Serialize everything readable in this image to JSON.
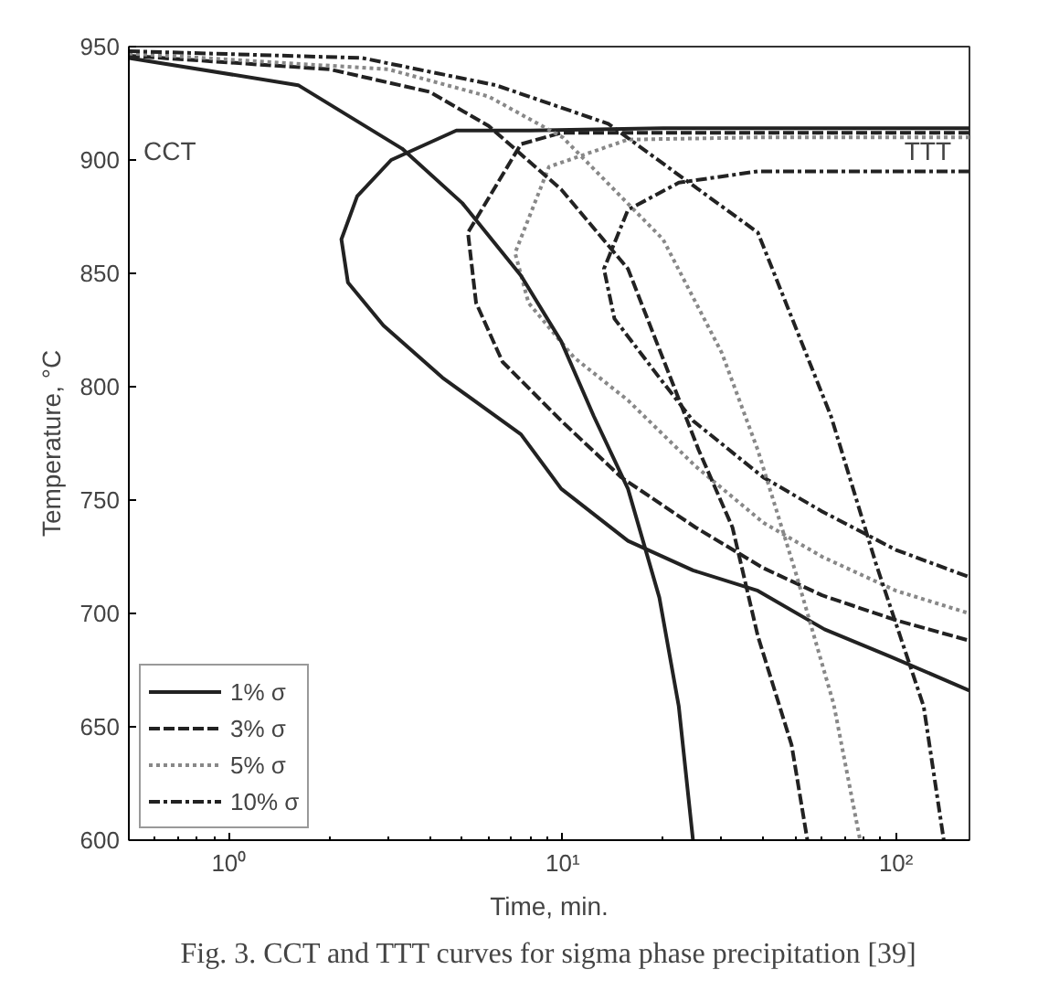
{
  "chart_data": {
    "type": "line",
    "xlabel": "Time, min.",
    "ylabel": "Temperature, °C",
    "log": "x",
    "xlim": [
      0.5,
      166
    ],
    "ylim": [
      600,
      950
    ],
    "xticks": [
      {
        "value": 1,
        "label": "10⁰"
      },
      {
        "value": 10,
        "label": "10¹"
      },
      {
        "value": 100,
        "label": "10²"
      }
    ],
    "yticks": [
      600,
      650,
      700,
      750,
      800,
      850,
      900,
      950
    ],
    "grid": false,
    "legend": "bottom left",
    "annotations": [
      "CCT",
      "TTT",
      "Fig. 3. CCT and TTT curves for sigma phase precipitation [39]"
    ],
    "series": [
      {
        "name": "1% σ",
        "color": "#222222",
        "line_style": "solid",
        "x": [
          166,
          20,
          8,
          4.8,
          3.06,
          2.42,
          2.17,
          2.27,
          2.9,
          4.36,
          7.5,
          9.9,
          15.7,
          24.6,
          38.5,
          61,
          96,
          166
        ],
        "values": [
          914,
          914,
          913,
          913,
          900,
          884,
          865,
          846,
          827,
          804,
          779,
          755,
          732,
          719,
          710,
          693,
          681,
          666
        ]
      },
      {
        "name": "3% σ",
        "color": "#222222",
        "line_style": "dashed",
        "x": [
          166,
          40,
          15.7,
          9.9,
          7.5,
          5.2,
          5.5,
          6.6,
          9.9,
          15,
          25,
          40,
          60,
          100,
          166
        ],
        "values": [
          912,
          912,
          912,
          912,
          907,
          868,
          837,
          811,
          785,
          760,
          738,
          720,
          708,
          697,
          688
        ]
      },
      {
        "name": "5% σ",
        "color": "#888888",
        "line_style": "dotted",
        "x": [
          166,
          40,
          15.7,
          9.1,
          7.2,
          7.9,
          10.8,
          15.7,
          25,
          40,
          60,
          100,
          166
        ],
        "values": [
          910,
          910,
          909,
          897,
          859,
          837,
          813,
          794,
          765,
          740,
          725,
          710,
          700
        ]
      },
      {
        "name": "10% σ",
        "color": "#222222",
        "line_style": "dashdot",
        "x": [
          166,
          38.5,
          22.3,
          15.7,
          13.3,
          14.3,
          19.5,
          24.6,
          40,
          60,
          100,
          166
        ],
        "values": [
          895,
          895,
          890,
          878,
          852,
          830,
          804,
          785,
          760,
          745,
          728,
          716
        ]
      },
      {
        "color": "#222222",
        "line_style": "solid",
        "x": [
          0.5,
          1.61,
          3.3,
          5.0,
          7.5,
          9.9,
          12.4,
          15.7,
          19.5,
          22.3,
          24.6
        ],
        "values": [
          945,
          933,
          905,
          881,
          849,
          820,
          787,
          755,
          707,
          659,
          600
        ]
      },
      {
        "color": "#222222",
        "line_style": "dashed",
        "x": [
          0.5,
          2,
          4,
          6,
          9.9,
          15.7,
          25.6,
          32.3,
          38.5,
          48.6,
          54.2
        ],
        "values": [
          946,
          940,
          930,
          915,
          887,
          852,
          772,
          738,
          690,
          642,
          600
        ]
      },
      {
        "color": "#888888",
        "line_style": "dotted",
        "x": [
          0.5,
          3,
          6,
          10,
          20,
          30,
          38.5,
          50,
          65,
          78
        ],
        "values": [
          947,
          940,
          928,
          910,
          865,
          815,
          772,
          718,
          660,
          600
        ]
      },
      {
        "color": "#222222",
        "line_style": "dashdot",
        "x": [
          0.5,
          2.5,
          6.3,
          13.7,
          38.5,
          63.8,
          87,
          121,
          139
        ],
        "values": [
          948,
          945,
          933,
          916,
          868,
          787,
          722,
          659,
          600
        ]
      }
    ]
  }
}
